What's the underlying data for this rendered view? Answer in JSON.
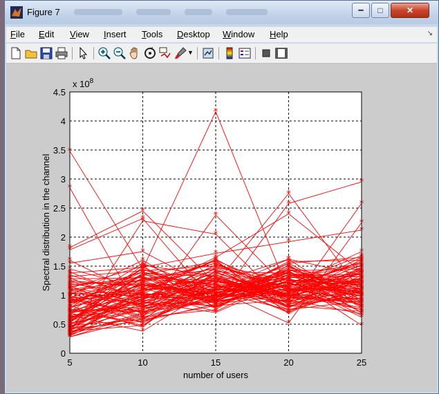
{
  "window": {
    "title": "Figure 7"
  },
  "menu": {
    "items": [
      "File",
      "Edit",
      "View",
      "Insert",
      "Tools",
      "Desktop",
      "Window",
      "Help"
    ]
  },
  "toolbar": {
    "icons": [
      "new-file-icon",
      "open-folder-icon",
      "save-icon",
      "print-icon",
      "pointer-arrow-icon",
      "zoom-in-icon",
      "zoom-out-icon",
      "pan-hand-icon",
      "rotate-3d-icon",
      "data-cursor-icon",
      "brush-icon",
      "link-plot-icon",
      "colorbar-icon",
      "legend-icon",
      "hide-plot-tools-icon",
      "show-plot-tools-icon"
    ]
  },
  "chart_data": {
    "type": "line",
    "xlabel": "number of users",
    "ylabel": "Spectral distribution in the channel",
    "y_multiplier": "x 10",
    "y_exponent": "8",
    "x": [
      5,
      10,
      15,
      20,
      25
    ],
    "xlim": [
      5,
      25
    ],
    "ylim": [
      0,
      4.5
    ],
    "x_ticks": [
      "5",
      "10",
      "15",
      "20",
      "25"
    ],
    "y_ticks": [
      "0",
      "0.5",
      "1",
      "1.5",
      "2",
      "2.5",
      "3",
      "3.5",
      "4",
      "4.5"
    ],
    "grid": true,
    "line_color": "#ff0000",
    "marker": "*",
    "series_count": 100,
    "series": [
      {
        "values": [
          3.48,
          1.45,
          4.16,
          1.05,
          1.38
        ]
      },
      {
        "values": [
          2.85,
          0.62,
          2.38,
          1.1,
          0.92
        ]
      },
      {
        "values": [
          1.82,
          2.45,
          1.2,
          2.75,
          1.05
        ]
      },
      {
        "values": [
          1.78,
          2.32,
          0.85,
          2.58,
          2.95
        ]
      },
      {
        "values": [
          0.35,
          2.28,
          2.05,
          0.82,
          2.58
        ]
      },
      {
        "values": [
          0.95,
          1.05,
          1.65,
          2.4,
          1.4
        ]
      },
      {
        "values": [
          1.55,
          1.75,
          1.1,
          0.52,
          2.25
        ]
      },
      {
        "values": [
          0.28,
          0.6,
          0.95,
          1.3,
          0.48
        ]
      },
      {
        "values": [
          1.38,
          1.48,
          1.72,
          1.92,
          2.12
        ]
      },
      {
        "values": [
          0.62,
          0.9,
          1.05,
          1.15,
          1.55
        ]
      },
      {
        "values": [
          1.05,
          0.85,
          1.25,
          0.95,
          1.05
        ]
      },
      {
        "values": [
          0.52,
          0.75,
          1.1,
          1.0,
          0.85
        ]
      },
      {
        "values": [
          0.45,
          1.02,
          0.98,
          1.38,
          1.2
        ]
      },
      {
        "values": [
          0.78,
          1.18,
          0.88,
          1.05,
          1.65
        ]
      },
      {
        "values": [
          1.12,
          0.95,
          1.52,
          1.25,
          0.98
        ]
      },
      {
        "values": [
          0.68,
          0.55,
          1.02,
          0.88,
          1.3
        ]
      },
      {
        "values": [
          0.88,
          1.35,
          1.18,
          0.72,
          1.12
        ]
      },
      {
        "values": [
          0.32,
          0.7,
          0.9,
          1.08,
          0.75
        ]
      },
      {
        "values": [
          1.45,
          1.12,
          0.78,
          1.45,
          1.1
        ]
      },
      {
        "values": [
          0.58,
          0.92,
          1.4,
          0.95,
          1.48
        ]
      },
      {
        "values": [
          0.95,
          0.65,
          1.08,
          1.22,
          0.62
        ]
      },
      {
        "values": [
          0.42,
          1.25,
          0.85,
          1.0,
          1.25
        ]
      },
      {
        "values": [
          1.25,
          0.8,
          1.3,
          0.8,
          1.0
        ]
      },
      {
        "values": [
          0.72,
          1.45,
          0.95,
          1.55,
          0.88
        ]
      },
      {
        "values": [
          0.38,
          0.48,
          1.22,
          1.12,
          1.58
        ]
      },
      {
        "values": [
          1.6,
          0.98,
          0.8,
          1.35,
          1.18
        ]
      },
      {
        "values": [
          0.8,
          1.1,
          1.6,
          0.68,
          1.35
        ]
      },
      {
        "values": [
          0.5,
          0.82,
          1.0,
          1.42,
          0.7
        ]
      },
      {
        "values": [
          1.0,
          1.6,
          0.88,
          1.18,
          1.75
        ]
      },
      {
        "values": [
          0.65,
          0.38,
          1.15,
          0.98,
          1.08
        ]
      },
      {
        "values": [
          0.9,
          1.28,
          1.45,
          0.85,
          0.95
        ]
      },
      {
        "values": [
          0.3,
          0.88,
          0.7,
          1.25,
          1.22
        ]
      },
      {
        "values": [
          1.2,
          1.0,
          1.08,
          1.62,
          0.8
        ]
      },
      {
        "values": [
          0.55,
          1.52,
          1.32,
          0.78,
          1.45
        ]
      },
      {
        "values": [
          0.75,
          0.72,
          0.92,
          1.48,
          1.02
        ]
      },
      {
        "values": [
          1.08,
          1.22,
          1.55,
          1.05,
          1.28
        ]
      },
      {
        "values": [
          0.48,
          0.58,
          0.82,
          0.92,
          0.68
        ]
      },
      {
        "values": [
          0.85,
          1.4,
          1.12,
          1.3,
          1.5
        ]
      },
      {
        "values": [
          0.4,
          1.08,
          1.28,
          0.75,
          0.9
        ]
      },
      {
        "values": [
          1.3,
          0.78,
          0.98,
          1.1,
          1.15
        ]
      },
      {
        "values": [
          0.6,
          1.15,
          1.48,
          1.2,
          1.68
        ]
      },
      {
        "values": [
          0.98,
          0.62,
          0.75,
          1.52,
          0.78
        ]
      },
      {
        "values": [
          0.35,
          0.95,
          1.05,
          0.9,
          1.38
        ]
      },
      {
        "values": [
          1.15,
          1.32,
          0.9,
          1.4,
          0.98
        ]
      },
      {
        "values": [
          0.7,
          0.85,
          1.35,
          1.0,
          1.2
        ]
      },
      {
        "values": [
          0.45,
          1.2,
          1.0,
          1.28,
          0.65
        ]
      },
      {
        "values": [
          1.4,
          0.9,
          1.2,
          0.7,
          1.42
        ]
      },
      {
        "values": [
          0.82,
          0.45,
          1.42,
          1.15,
          1.05
        ]
      },
      {
        "values": [
          0.55,
          1.38,
          0.8,
          1.35,
          1.32
        ]
      },
      {
        "values": [
          0.92,
          1.02,
          1.62,
          0.95,
          0.88
        ]
      },
      {
        "values": [
          0.28,
          0.68,
          1.1,
          1.08,
          1.12
        ]
      },
      {
        "values": [
          1.22,
          1.18,
          0.95,
          1.58,
          1.6
        ]
      },
      {
        "values": [
          0.62,
          0.98,
          1.25,
          0.82,
          0.72
        ]
      },
      {
        "values": [
          0.78,
          1.55,
          1.05,
          1.22,
          1.25
        ]
      },
      {
        "values": [
          0.4,
          0.78,
          0.88,
          1.45,
          1.0
        ]
      },
      {
        "values": [
          1.05,
          0.58,
          1.38,
          1.02,
          1.4
        ]
      },
      {
        "values": [
          0.68,
          1.28,
          1.18,
          0.88,
          0.95
        ]
      },
      {
        "values": [
          0.5,
          1.05,
          0.72,
          1.32,
          1.55
        ]
      },
      {
        "values": [
          1.32,
          1.42,
          1.5,
          1.12,
          1.08
        ]
      },
      {
        "values": [
          0.88,
          0.72,
          1.0,
          1.4,
          0.82
        ]
      },
      {
        "values": [
          0.32,
          1.12,
          1.3,
          0.98,
          1.3
        ]
      },
      {
        "values": [
          1.1,
          0.88,
          0.82,
          1.25,
          1.18
        ]
      },
      {
        "values": [
          0.58,
          1.35,
          1.58,
          0.78,
          1.48
        ]
      },
      {
        "values": [
          0.95,
          0.52,
          1.12,
          1.5,
          0.92
        ]
      },
      {
        "values": [
          0.44,
          0.98,
          0.92,
          1.18,
          1.22
        ]
      },
      {
        "values": [
          1.18,
          1.25,
          1.4,
          0.92,
          1.62
        ]
      },
      {
        "values": [
          0.72,
          0.8,
          1.08,
          1.35,
          1.05
        ]
      },
      {
        "values": [
          0.52,
          1.48,
          0.98,
          1.05,
          0.78
        ]
      },
      {
        "values": [
          1.02,
          1.08,
          1.22,
          1.62,
          1.35
        ]
      },
      {
        "values": [
          0.36,
          0.65,
          1.35,
          0.85,
          1.12
        ]
      },
      {
        "values": [
          1.28,
          1.3,
          0.85,
          1.2,
          0.98
        ]
      },
      {
        "values": [
          0.64,
          0.92,
          1.52,
          1.1,
          1.42
        ]
      },
      {
        "values": [
          0.86,
          1.18,
          1.02,
          1.45,
          0.85
        ]
      },
      {
        "values": [
          0.42,
          0.75,
          1.18,
          0.8,
          1.28
        ]
      },
      {
        "values": [
          1.12,
          1.5,
          0.78,
          1.32,
          1.1
        ]
      },
      {
        "values": [
          0.75,
          0.48,
          1.28,
          1.02,
          1.52
        ]
      },
      {
        "values": [
          0.3,
          1.1,
          1.08,
          1.38,
          0.7
        ]
      },
      {
        "values": [
          1.35,
          0.95,
          1.45,
          0.88,
          1.25
        ]
      },
      {
        "values": [
          0.6,
          1.22,
          0.95,
          1.28,
          1.02
        ]
      },
      {
        "values": [
          0.92,
          0.7,
          1.15,
          1.15,
          1.58
        ]
      },
      {
        "values": [
          0.48,
          1.38,
          1.32,
          0.95,
          0.95
        ]
      },
      {
        "values": [
          1.08,
          0.82,
          0.9,
          1.48,
          1.2
        ]
      },
      {
        "values": [
          0.68,
          1.05,
          1.6,
          1.08,
          1.38
        ]
      },
      {
        "values": [
          0.82,
          1.45,
          1.05,
          0.75,
          1.08
        ]
      },
      {
        "values": [
          0.38,
          0.62,
          0.98,
          1.22,
          0.82
        ]
      },
      {
        "values": [
          1.25,
          1.15,
          1.25,
          1.0,
          1.45
        ]
      },
      {
        "values": [
          0.56,
          0.88,
          1.4,
          1.38,
          1.15
        ]
      },
      {
        "values": [
          0.96,
          1.32,
          0.88,
          1.12,
          0.9
        ]
      },
      {
        "values": [
          0.34,
          1.0,
          1.15,
          1.3,
          1.32
        ]
      },
      {
        "values": [
          1.16,
          0.68,
          1.48,
          0.9,
          1.05
        ]
      },
      {
        "values": [
          0.7,
          1.2,
          1.02,
          1.55,
          1.65
        ]
      },
      {
        "values": [
          0.46,
          0.95,
          1.2,
          1.02,
          0.75
        ]
      },
      {
        "values": [
          1.02,
          1.4,
          0.92,
          1.25,
          1.28
        ]
      },
      {
        "values": [
          0.62,
          0.78,
          1.35,
          0.82,
          1.0
        ]
      },
      {
        "values": [
          0.88,
          1.12,
          1.1,
          1.42,
          1.45
        ]
      },
      {
        "values": [
          0.42,
          0.55,
          0.85,
          1.18,
          1.1
        ]
      },
      {
        "values": [
          1.1,
          1.25,
          1.55,
          0.98,
          0.88
        ]
      },
      {
        "values": [
          0.74,
          0.98,
          0.95,
          1.35,
          1.35
        ]
      },
      {
        "values": [
          0.54,
          1.3,
          1.25,
          1.08,
          1.18
        ]
      },
      {
        "values": [
          0.98,
          0.85,
          1.05,
          1.28,
          0.98
        ]
      }
    ]
  }
}
